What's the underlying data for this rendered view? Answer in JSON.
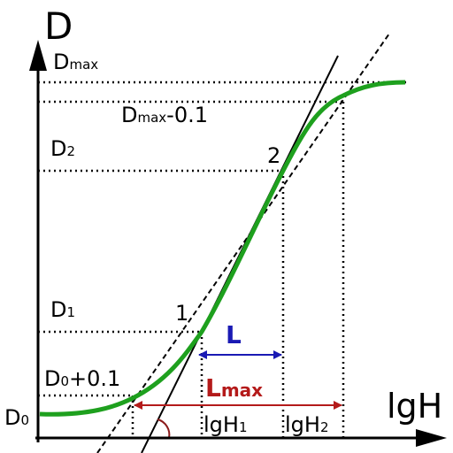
{
  "axes": {
    "y_label": "D",
    "x_label": "lgH"
  },
  "levels": [
    {
      "base": "D",
      "sub": "max"
    },
    {
      "base": "D",
      "sub": "max",
      "suffix": "-0.1"
    },
    {
      "base": "D",
      "sub": "2"
    },
    {
      "base": "D",
      "sub": "1"
    },
    {
      "base": "D",
      "sub": "0",
      "suffix": "+0.1"
    },
    {
      "base": "D",
      "sub": "0"
    }
  ],
  "points": [
    "1",
    "2"
  ],
  "ranges": [
    {
      "label": "L"
    },
    {
      "label": "L",
      "sub": "max"
    }
  ],
  "x_marks": [
    {
      "base": "lgH",
      "sub": "1"
    },
    {
      "base": "lgH",
      "sub": "2"
    }
  ]
}
